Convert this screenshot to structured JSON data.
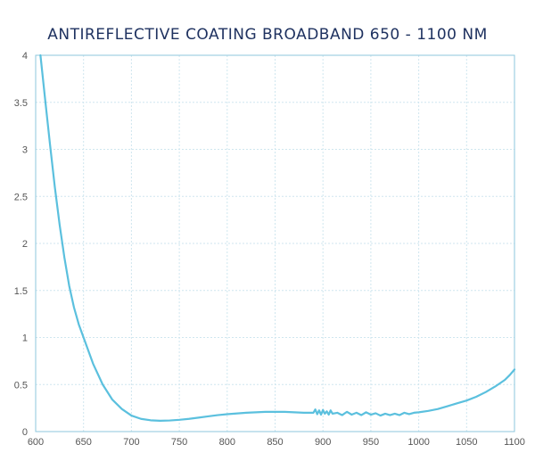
{
  "chart_data": {
    "type": "line",
    "title": "ANTIREFLECTIVE COATING BROADBAND 650 - 1100 NM",
    "xlabel": "",
    "ylabel": "",
    "xlim": [
      600,
      1100
    ],
    "ylim": [
      0,
      4
    ],
    "x_ticks": [
      "600",
      "650",
      "700",
      "750",
      "800",
      "850",
      "900",
      "950",
      "1000",
      "1050",
      "1100"
    ],
    "y_ticks": [
      "0",
      "0.5",
      "1",
      "1.5",
      "2",
      "2.5",
      "3",
      "3.5",
      "4"
    ],
    "grid": true,
    "series": [
      {
        "name": "",
        "color": "#5bc0de",
        "x": [
          605,
          610,
          615,
          620,
          625,
          630,
          635,
          640,
          645,
          650,
          660,
          670,
          680,
          690,
          700,
          710,
          720,
          730,
          740,
          750,
          760,
          770,
          780,
          790,
          800,
          820,
          840,
          860,
          880,
          890,
          892,
          894,
          896,
          898,
          900,
          902,
          904,
          906,
          908,
          910,
          915,
          920,
          925,
          930,
          935,
          940,
          945,
          950,
          955,
          960,
          965,
          970,
          975,
          980,
          985,
          990,
          995,
          1000,
          1010,
          1020,
          1030,
          1040,
          1050,
          1060,
          1070,
          1080,
          1090,
          1095,
          1100
        ],
        "y": [
          4.0,
          3.52,
          3.05,
          2.6,
          2.2,
          1.85,
          1.55,
          1.32,
          1.14,
          1.0,
          0.72,
          0.5,
          0.34,
          0.24,
          0.17,
          0.135,
          0.12,
          0.115,
          0.118,
          0.125,
          0.135,
          0.148,
          0.162,
          0.175,
          0.185,
          0.2,
          0.21,
          0.21,
          0.2,
          0.2,
          0.235,
          0.185,
          0.225,
          0.18,
          0.23,
          0.19,
          0.215,
          0.18,
          0.225,
          0.19,
          0.2,
          0.175,
          0.21,
          0.18,
          0.2,
          0.175,
          0.205,
          0.18,
          0.195,
          0.17,
          0.19,
          0.175,
          0.19,
          0.175,
          0.2,
          0.185,
          0.2,
          0.205,
          0.22,
          0.24,
          0.27,
          0.3,
          0.33,
          0.37,
          0.42,
          0.48,
          0.55,
          0.6,
          0.66
        ]
      }
    ]
  }
}
